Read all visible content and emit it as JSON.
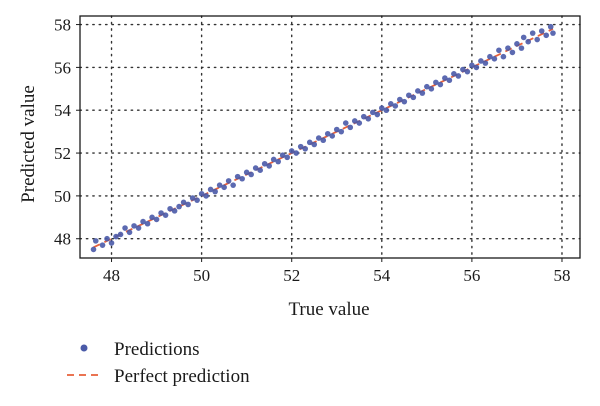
{
  "chart_data": {
    "type": "scatter",
    "xlabel": "True value",
    "ylabel": "Predicted value",
    "xlim": [
      47.3,
      58.4
    ],
    "ylim": [
      47.1,
      58.4
    ],
    "x_ticks": [
      48,
      50,
      52,
      54,
      56,
      58
    ],
    "y_ticks": [
      48,
      50,
      52,
      54,
      56,
      58
    ],
    "grid": true,
    "grid_style": "dotted",
    "legend_position": "bottom-left",
    "colors": {
      "points": "#4a5aa8",
      "perfect_line": "#e8613a",
      "grid": "#333333",
      "axes": "#1a1a1a"
    },
    "series": [
      {
        "name": "Predictions",
        "marker": "dot",
        "points": [
          [
            47.6,
            47.5
          ],
          [
            47.65,
            47.9
          ],
          [
            47.8,
            47.7
          ],
          [
            47.9,
            48.0
          ],
          [
            48.0,
            47.8
          ],
          [
            48.1,
            48.1
          ],
          [
            48.2,
            48.2
          ],
          [
            48.3,
            48.5
          ],
          [
            48.4,
            48.3
          ],
          [
            48.5,
            48.6
          ],
          [
            48.6,
            48.5
          ],
          [
            48.7,
            48.8
          ],
          [
            48.8,
            48.7
          ],
          [
            48.9,
            49.0
          ],
          [
            49.0,
            48.9
          ],
          [
            49.1,
            49.2
          ],
          [
            49.2,
            49.1
          ],
          [
            49.3,
            49.4
          ],
          [
            49.4,
            49.3
          ],
          [
            49.5,
            49.5
          ],
          [
            49.6,
            49.7
          ],
          [
            49.7,
            49.6
          ],
          [
            49.8,
            49.9
          ],
          [
            49.9,
            49.8
          ],
          [
            50.0,
            50.1
          ],
          [
            50.1,
            50.0
          ],
          [
            50.2,
            50.3
          ],
          [
            50.3,
            50.2
          ],
          [
            50.4,
            50.5
          ],
          [
            50.5,
            50.4
          ],
          [
            50.6,
            50.7
          ],
          [
            50.7,
            50.5
          ],
          [
            50.8,
            50.9
          ],
          [
            50.9,
            50.8
          ],
          [
            51.0,
            51.1
          ],
          [
            51.1,
            51.0
          ],
          [
            51.2,
            51.3
          ],
          [
            51.3,
            51.2
          ],
          [
            51.4,
            51.5
          ],
          [
            51.5,
            51.4
          ],
          [
            51.6,
            51.7
          ],
          [
            51.7,
            51.6
          ],
          [
            51.8,
            51.9
          ],
          [
            51.9,
            51.8
          ],
          [
            52.0,
            52.1
          ],
          [
            52.1,
            52.0
          ],
          [
            52.2,
            52.3
          ],
          [
            52.3,
            52.2
          ],
          [
            52.4,
            52.5
          ],
          [
            52.5,
            52.4
          ],
          [
            52.6,
            52.7
          ],
          [
            52.7,
            52.6
          ],
          [
            52.8,
            52.9
          ],
          [
            52.9,
            52.8
          ],
          [
            53.0,
            53.1
          ],
          [
            53.1,
            53.0
          ],
          [
            53.2,
            53.4
          ],
          [
            53.3,
            53.2
          ],
          [
            53.4,
            53.5
          ],
          [
            53.5,
            53.4
          ],
          [
            53.6,
            53.7
          ],
          [
            53.7,
            53.6
          ],
          [
            53.8,
            53.9
          ],
          [
            53.9,
            53.8
          ],
          [
            54.0,
            54.1
          ],
          [
            54.1,
            54.0
          ],
          [
            54.2,
            54.3
          ],
          [
            54.3,
            54.2
          ],
          [
            54.4,
            54.5
          ],
          [
            54.5,
            54.4
          ],
          [
            54.6,
            54.7
          ],
          [
            54.7,
            54.6
          ],
          [
            54.8,
            54.9
          ],
          [
            54.9,
            54.8
          ],
          [
            55.0,
            55.1
          ],
          [
            55.1,
            55.0
          ],
          [
            55.2,
            55.3
          ],
          [
            55.3,
            55.2
          ],
          [
            55.4,
            55.5
          ],
          [
            55.5,
            55.4
          ],
          [
            55.6,
            55.7
          ],
          [
            55.7,
            55.6
          ],
          [
            55.8,
            55.9
          ],
          [
            55.9,
            55.8
          ],
          [
            56.0,
            56.1
          ],
          [
            56.1,
            56.0
          ],
          [
            56.2,
            56.3
          ],
          [
            56.3,
            56.2
          ],
          [
            56.4,
            56.5
          ],
          [
            56.5,
            56.4
          ],
          [
            56.6,
            56.8
          ],
          [
            56.7,
            56.5
          ],
          [
            56.8,
            56.9
          ],
          [
            56.9,
            56.7
          ],
          [
            57.0,
            57.1
          ],
          [
            57.1,
            56.9
          ],
          [
            57.15,
            57.4
          ],
          [
            57.25,
            57.2
          ],
          [
            57.35,
            57.6
          ],
          [
            57.45,
            57.3
          ],
          [
            57.55,
            57.7
          ],
          [
            57.65,
            57.5
          ],
          [
            57.75,
            57.9
          ],
          [
            57.8,
            57.6
          ]
        ]
      },
      {
        "name": "Perfect prediction",
        "marker": "dashed-line",
        "x": [
          47.6,
          57.8
        ],
        "y": [
          47.6,
          57.8
        ]
      }
    ]
  },
  "legend": {
    "items": [
      {
        "label": "Predictions",
        "color": "#4a5aa8",
        "symbol": "dot"
      },
      {
        "label": "Perfect prediction",
        "color": "#e8613a",
        "symbol": "dashed-line"
      }
    ]
  }
}
